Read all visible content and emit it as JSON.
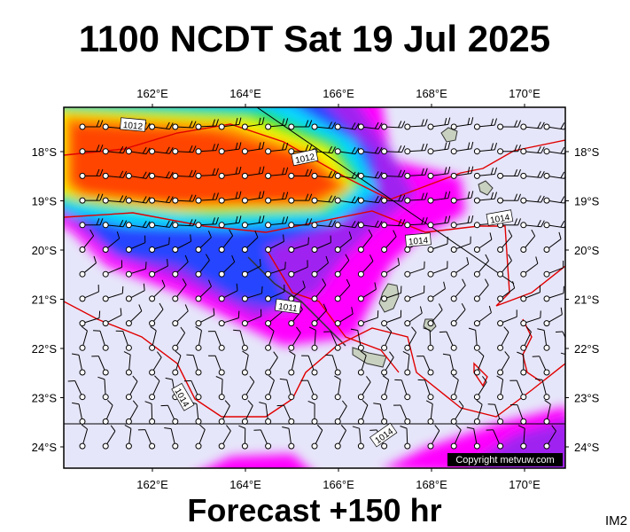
{
  "header": {
    "title": "1100 NCDT Sat 19 Jul 2025"
  },
  "axes": {
    "lon_labels": [
      "162°E",
      "164°E",
      "166°E",
      "168°E",
      "170°E"
    ],
    "lat_labels": [
      "18°S",
      "19°S",
      "20°S",
      "21°S",
      "22°S",
      "23°S",
      "24°S"
    ]
  },
  "isobar_labels": [
    "1012",
    "1012",
    "1014",
    "1014",
    "1011",
    "1014",
    "1014"
  ],
  "footer": {
    "forecast": "Forecast +150 hr",
    "copyright": "Copyright metvuw.com",
    "image_id": "IM2"
  }
}
